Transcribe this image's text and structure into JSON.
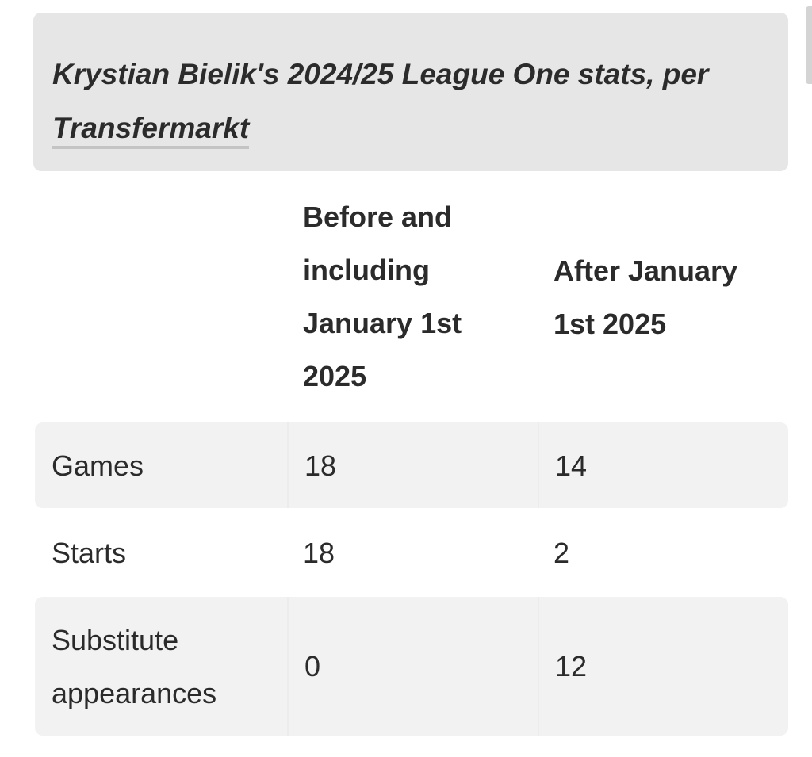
{
  "caption": {
    "text": "Krystian Bielik's 2024/25 League One stats, per ",
    "link_text": "Transfermarkt"
  },
  "table": {
    "headers": [
      "",
      "Before and including January 1st 2025",
      "After January 1st 2025"
    ],
    "rows": [
      {
        "label": "Games",
        "before": "18",
        "after": "14"
      },
      {
        "label": "Starts",
        "before": "18",
        "after": "2"
      },
      {
        "label": "Substitute appearances",
        "before": "0",
        "after": "12"
      }
    ]
  }
}
